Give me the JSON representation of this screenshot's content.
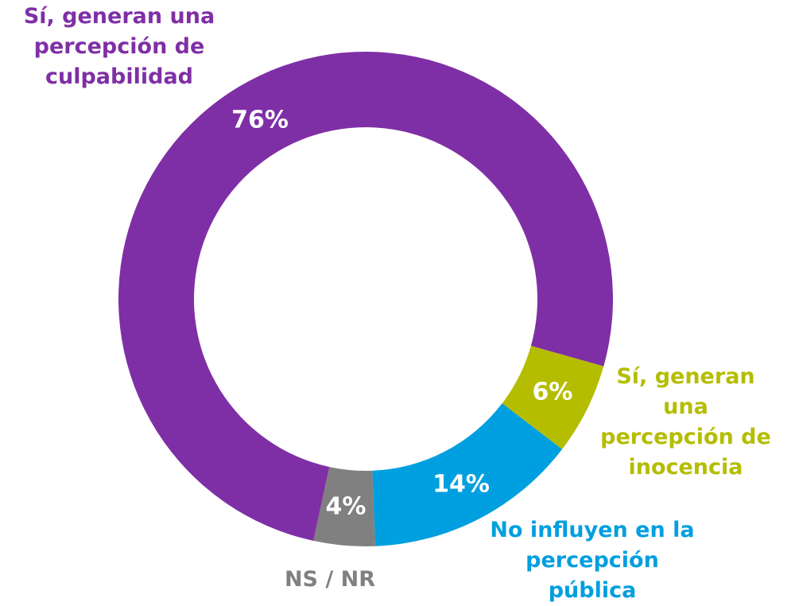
{
  "chart_data": {
    "type": "donut",
    "categories": [
      "Sí, generan una percepción de culpabilidad",
      "Sí, generan una percepción de inocencia",
      "No influyen en la percepción pública",
      "NS / NR"
    ],
    "values": [
      76,
      6,
      14,
      4
    ],
    "value_labels": [
      "76%",
      "6%",
      "14%",
      "4%"
    ],
    "colors": [
      "#7f2fa6",
      "#b5bd00",
      "#009fdf",
      "#808080"
    ]
  }
}
